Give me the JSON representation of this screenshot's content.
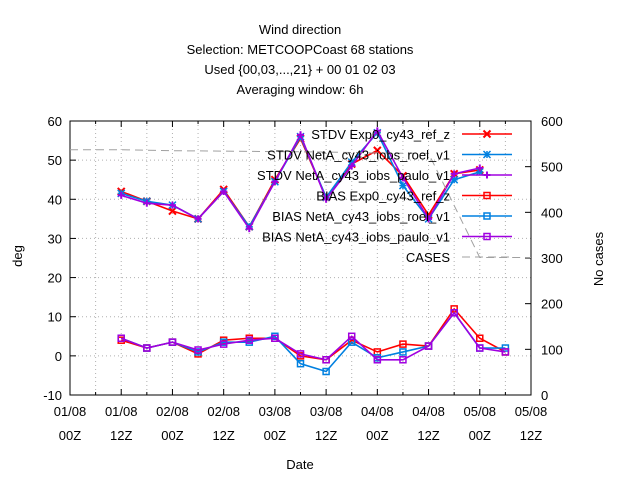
{
  "chart_data": {
    "type": "line",
    "title": [
      "Wind direction",
      "Selection: METCOOPCoast      68 stations",
      "Used {00,03,...,21} + 00 01 02 03",
      "Averaging window:  6h"
    ],
    "xlabel": "Date",
    "ylabel": "deg",
    "y2label": "No cases",
    "xlim": [
      0,
      48
    ],
    "ylim": [
      -10,
      60
    ],
    "y2lim": [
      0,
      600
    ],
    "grid": true,
    "legend_position": "top-right",
    "x_ticks": [
      0,
      6,
      12,
      18,
      24,
      30,
      36,
      42,
      48,
      54,
      60,
      66,
      72,
      78,
      84,
      90,
      96,
      102,
      108
    ],
    "x_tick_labels_top": [
      "01/08",
      "01/08",
      "02/08",
      "02/08",
      "03/08",
      "03/08",
      "04/08",
      "04/08",
      "05/08",
      "05/08"
    ],
    "x_tick_labels_bottom": [
      "00Z",
      "12Z",
      "00Z",
      "12Z",
      "00Z",
      "12Z",
      "00Z",
      "12Z",
      "00Z",
      "12Z"
    ],
    "x_tick_label_hours": [
      0,
      12,
      24,
      36,
      48,
      60,
      72,
      84,
      96,
      108
    ],
    "y_ticks": [
      -10,
      0,
      10,
      20,
      30,
      40,
      50,
      60
    ],
    "y2_ticks": [
      0,
      100,
      200,
      300,
      400,
      500,
      600
    ],
    "x": [
      12,
      18,
      24,
      30,
      36,
      42,
      48,
      54,
      60,
      66,
      72,
      78,
      84,
      90,
      96,
      102
    ],
    "series": [
      {
        "name": "STDV Exp0_cy43_ref_z",
        "color": "#ff0000",
        "marker": "x-cross",
        "axis": "y",
        "values": [
          42,
          39.5,
          37,
          35,
          42.5,
          33,
          45,
          55.5,
          40.5,
          49,
          52.5,
          46,
          36,
          46.5,
          47.5,
          null
        ]
      },
      {
        "name": "STDV NetA_cy43_iobs_roel_v1",
        "color": "#0080e0",
        "marker": "star",
        "axis": "y",
        "values": [
          41.5,
          39.5,
          38.5,
          35,
          42,
          33,
          44.5,
          56,
          40.5,
          49.5,
          57,
          43.5,
          35,
          45,
          47,
          null
        ]
      },
      {
        "name": "STDV NetA_cy43_iobs_paulo_v1",
        "color": "#a000e0",
        "marker": "plus",
        "axis": "y",
        "values": [
          41,
          39,
          38.5,
          35,
          42,
          32.5,
          44.5,
          56.5,
          40,
          48.5,
          57.5,
          45.5,
          35,
          46.5,
          48,
          null
        ]
      },
      {
        "name": "BIAS Exp0_cy43_ref_z",
        "color": "#ff0000",
        "marker": "square",
        "axis": "y",
        "values": [
          4,
          2,
          3.5,
          0.5,
          4,
          4.5,
          4.5,
          0,
          -1,
          4,
          1,
          3,
          2.5,
          12,
          4.5,
          1
        ]
      },
      {
        "name": "BIAS NetA_cy43_iobs_roel_v1",
        "color": "#0080e0",
        "marker": "square",
        "axis": "y",
        "values": [
          4.5,
          2,
          3.5,
          1,
          3.5,
          3.5,
          5,
          -2,
          -4,
          3.5,
          -0.5,
          1,
          2.5,
          11,
          2,
          2
        ]
      },
      {
        "name": "BIAS NetA_cy43_iobs_paulo_v1",
        "color": "#a000e0",
        "marker": "square",
        "axis": "y",
        "values": [
          4.5,
          2,
          3.5,
          1.5,
          3,
          4,
          4.5,
          0.5,
          -1,
          5,
          -1,
          -1,
          2.5,
          11,
          2,
          1
        ]
      },
      {
        "name": "CASES",
        "color": "#a0a0a0",
        "marker": "none",
        "axis": "y2",
        "dashed": true,
        "x_cases": [
          0,
          12,
          24,
          36,
          48,
          60,
          72,
          84,
          96,
          108
        ],
        "values_cases": [
          537,
          537,
          535,
          534,
          533,
          532,
          530,
          529,
          301,
          301
        ]
      }
    ]
  }
}
